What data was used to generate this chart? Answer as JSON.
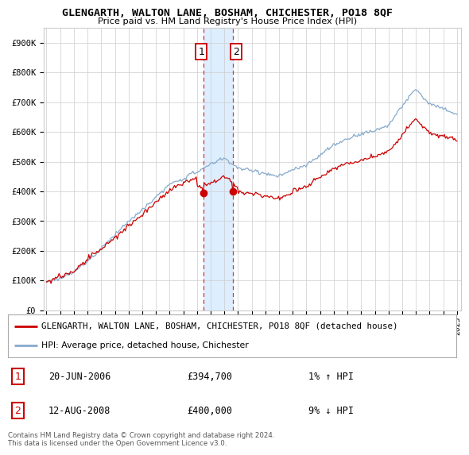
{
  "title": "GLENGARTH, WALTON LANE, BOSHAM, CHICHESTER, PO18 8QF",
  "subtitle": "Price paid vs. HM Land Registry's House Price Index (HPI)",
  "ylabel_ticks": [
    "£0",
    "£100K",
    "£200K",
    "£300K",
    "£400K",
    "£500K",
    "£600K",
    "£700K",
    "£800K",
    "£900K"
  ],
  "ytick_values": [
    0,
    100000,
    200000,
    300000,
    400000,
    500000,
    600000,
    700000,
    800000,
    900000
  ],
  "ylim": [
    0,
    950000
  ],
  "xlim_start": 1994.8,
  "xlim_end": 2025.3,
  "legend_line1": "GLENGARTH, WALTON LANE, BOSHAM, CHICHESTER, PO18 8QF (detached house)",
  "legend_line2": "HPI: Average price, detached house, Chichester",
  "sale1_date": "20-JUN-2006",
  "sale1_price": "£394,700",
  "sale1_hpi": "1% ↑ HPI",
  "sale2_date": "12-AUG-2008",
  "sale2_price": "£400,000",
  "sale2_hpi": "9% ↓ HPI",
  "footnote": "Contains HM Land Registry data © Crown copyright and database right 2024.\nThis data is licensed under the Open Government Licence v3.0.",
  "line_color_red": "#cc0000",
  "line_color_blue": "#88aacc",
  "shade_color": "#ddeeff",
  "sale1_x": 2006.47,
  "sale2_x": 2008.62,
  "grid_color": "#cccccc",
  "background_color": "#ffffff"
}
